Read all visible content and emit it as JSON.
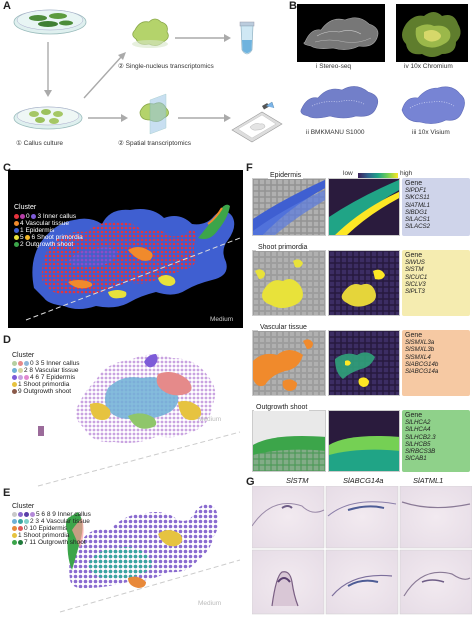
{
  "panelA": {
    "label": "A",
    "callus_culture": "① Callus culture",
    "single_nucleus": "② Single-nucleus transcriptomics",
    "spatial": "② Spatial transcriptomics"
  },
  "panelB": {
    "label": "B",
    "stereo": "i Stereo-seq",
    "chromium": "iv 10x Chromium",
    "bmk": "ii BMKMANU S1000",
    "visium": "iii 10x Visium"
  },
  "panelC": {
    "label": "C",
    "title": "Cluster",
    "items": [
      {
        "nums": "0",
        "nums2": "3",
        "label": "Inner callus",
        "colors": [
          "#e5333d",
          "#b43ea6",
          "#7d5bd8"
        ]
      },
      {
        "nums": "4",
        "label": "Vascular tissue",
        "colors": [
          "#f08a2c"
        ]
      },
      {
        "nums": "1",
        "label": "Epidermis",
        "colors": [
          "#3f5fd1"
        ]
      },
      {
        "nums": "5",
        "nums2": "6",
        "label": "Shoot primordia",
        "colors": [
          "#e8e23a",
          "#f2b728"
        ]
      },
      {
        "nums": "2",
        "label": "Outgrowth shoot",
        "colors": [
          "#3ca54a"
        ]
      }
    ],
    "medium": "Medium"
  },
  "panelD": {
    "label": "D",
    "title": "Cluster",
    "lines": [
      "0 3 5 Inner callus",
      "2 8 Vascular tissue",
      "4 6 7 Epidermis",
      "1 Shoot primordia",
      "9 Outgrowth shoot"
    ],
    "medium": "Medium"
  },
  "panelE": {
    "label": "E",
    "title": "Cluster",
    "lines": [
      "5 6 8 9 Inner callus",
      "2 3 4 Vascular tissue",
      "0 10 Epidermis",
      "1 Shoot primordia",
      "7 11 Outgrowth shoot"
    ],
    "medium": "Medium"
  },
  "panelF": {
    "label": "F",
    "scale_low": "low",
    "scale_high": "high",
    "rows": [
      {
        "title": "Epidermis",
        "gene_header": "Gene",
        "genes": [
          "SlPDF1",
          "SlKCS11",
          "SlATML1",
          "SlBDG1",
          "SlLACS1",
          "SlLACS2"
        ],
        "box_color": "#cfd4ea"
      },
      {
        "title": "Shoot primordia",
        "gene_header": "Gene",
        "genes": [
          "SlWUS",
          "SlSTM",
          "SlCUC1",
          "SlCLV3",
          "SlPLT3"
        ],
        "box_color": "#f5ecb0"
      },
      {
        "title": "Vascular tissue",
        "gene_header": "Gene",
        "genes": [
          "SlSMXL3a",
          "SlSMXL3b",
          "SlSMXL4",
          "SlABCG14b",
          "SlABCG14a"
        ],
        "box_color": "#f6c9a3"
      },
      {
        "title": "Outgrowth shoot",
        "gene_header": "Gene",
        "genes": [
          "SlLHCA2",
          "SlLHCA4",
          "SlLHCB2.3",
          "SlLHCB5",
          "SlRBCS3B",
          "SlCAB1"
        ],
        "box_color": "#8fd18a"
      }
    ]
  },
  "panelG": {
    "label": "G",
    "genes": [
      "SlSTM",
      "SlABCG14a",
      "SlATML1"
    ]
  }
}
